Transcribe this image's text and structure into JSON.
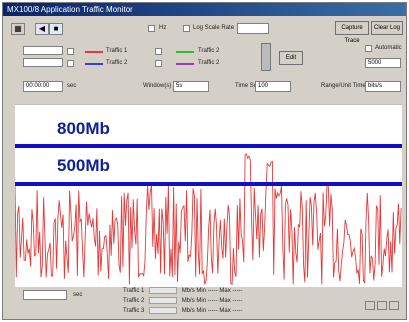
{
  "window": {
    "title": "MX100/8 Application Traffic Monitor"
  },
  "toolbar": {
    "buttons": [
      "",
      "",
      ""
    ]
  },
  "header": {
    "chk1": "Hz",
    "chk2": "Log Scale Rate",
    "btn1": "Capture Trace",
    "btn2": "Clear Log"
  },
  "legend": {
    "traffic1": "Traffic 1",
    "traffic2": "Traffic 2",
    "colors": {
      "t1": "#e53a3a",
      "t2": "#3a3ae5",
      "t3": "#36b836",
      "t4": "#9b3ab5"
    }
  },
  "controls": {
    "update_btn": "Edit",
    "right_chk": "Automatic",
    "right_value": "5000"
  },
  "row2": {
    "value": "00:00:00",
    "unit": "sec",
    "window_label": "Window(s)",
    "window_value": "5s",
    "time_label": "Time Scale",
    "time_value": "100",
    "range_label": "Range/Unit Time",
    "range_value": "bits/s"
  },
  "markers": {
    "upper": "800Mb",
    "lower": "500Mb"
  },
  "bottom": {
    "field": "",
    "unit": "sec",
    "stats": [
      {
        "label": "Traffic 1",
        "unit": "Mb/s",
        "min": "-----",
        "max": "-----"
      },
      {
        "label": "Traffic 2",
        "unit": "Mb/s",
        "min": "-----",
        "max": "-----"
      },
      {
        "label": "Traffic 3",
        "unit": "Mb/s",
        "min": "-----",
        "max": "-----"
      }
    ],
    "min_label": "Min",
    "max_label": "Max"
  }
}
